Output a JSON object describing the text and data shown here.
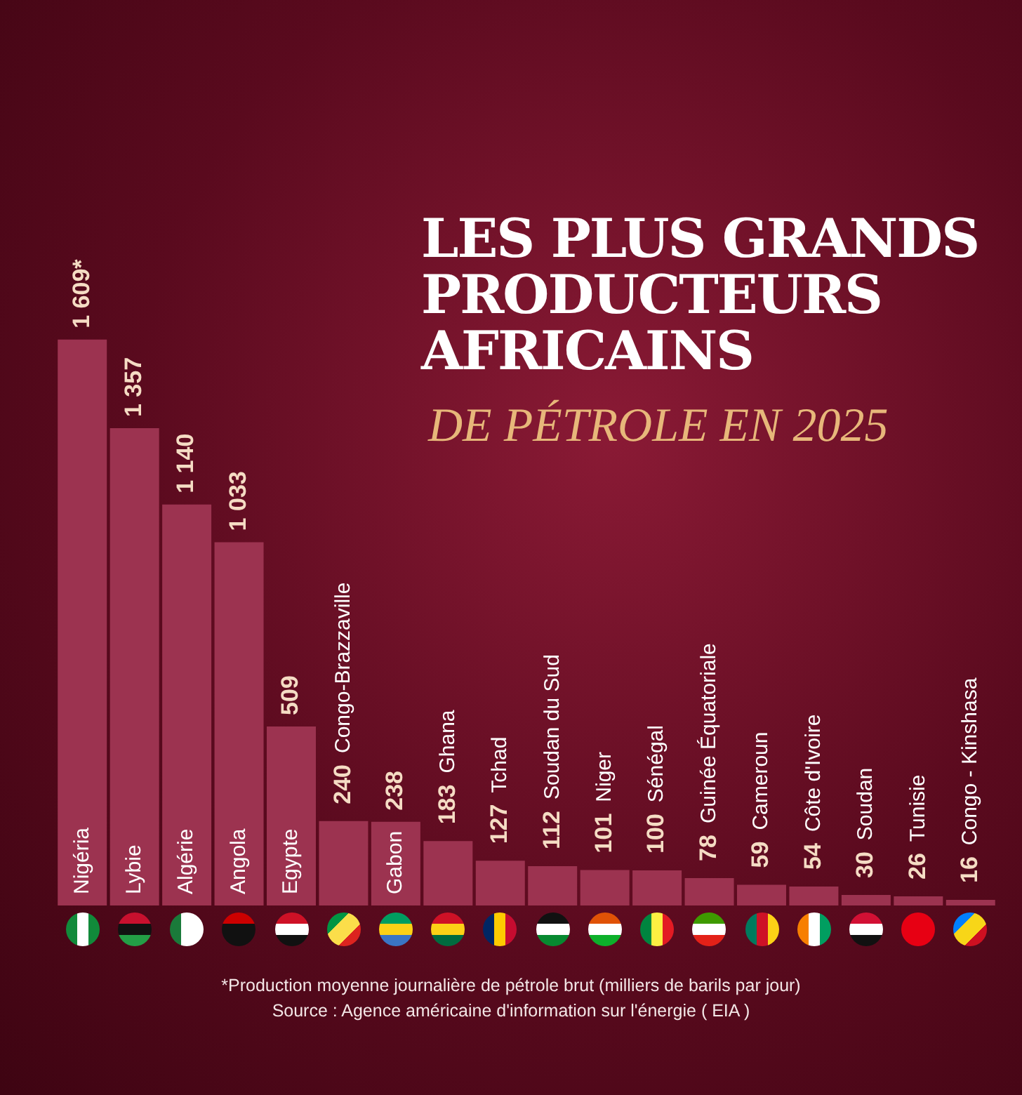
{
  "chart_data": {
    "type": "bar",
    "title": "LES PLUS GRANDS PRODUCTEURS AFRICAINS",
    "subtitle": "DE PÉTROLE EN 2025",
    "categories": [
      "Nigéria",
      "Lybie",
      "Algérie",
      "Angola",
      "Egypte",
      "Congo-Brazzaville",
      "Gabon",
      "Ghana",
      "Tchad",
      "Soudan du Sud",
      "Niger",
      "Sénégal",
      "Guinée Équatoriale",
      "Cameroun",
      "Côte d'Ivoire",
      "Soudan",
      "Tunisie",
      "Congo - Kinshasa"
    ],
    "values": [
      1609,
      1357,
      1140,
      1033,
      509,
      240,
      238,
      183,
      127,
      112,
      101,
      100,
      78,
      59,
      54,
      30,
      26,
      16
    ],
    "value_labels": [
      "1 609*",
      "1 357",
      "1 140",
      "1 033",
      "509",
      "240",
      "238",
      "183",
      "127",
      "112",
      "101",
      "100",
      "78",
      "59",
      "54",
      "30",
      "26",
      "16"
    ],
    "color": "#9c3350",
    "annotations": [
      "*Production moyenne journalière de pétrole brut (milliers de barils par jour)",
      "Source : Agence américaine d'information sur l'énergie ( EIA )"
    ],
    "legend": false
  }
}
